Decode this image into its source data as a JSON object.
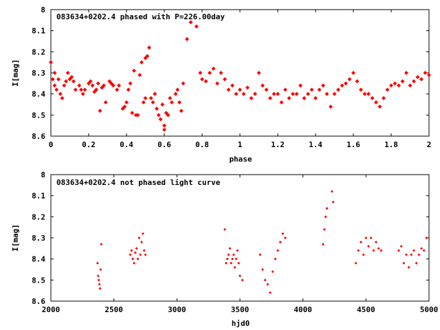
{
  "chart_data": [
    {
      "type": "scatter",
      "title": "083634+0202.4 phased with P=226.00day",
      "xlabel": "phase",
      "ylabel": "I[mag]",
      "xlim": [
        0,
        2
      ],
      "ylim": [
        8.6,
        8.0
      ],
      "y_inverted": true,
      "xticks": [
        "0",
        "0.2",
        "0.4",
        "0.6",
        "0.8",
        "1",
        "1.2",
        "1.4",
        "1.6",
        "1.8",
        "2"
      ],
      "yticks": [
        "8",
        "8.1",
        "8.2",
        "8.3",
        "8.4",
        "8.5",
        "8.6"
      ],
      "marker_color": "#ff0000",
      "grid": false,
      "series": [
        {
          "x": [
            0.0,
            0.01,
            0.02,
            0.02,
            0.03,
            0.04,
            0.05,
            0.06,
            0.07,
            0.08,
            0.09,
            0.1,
            0.11,
            0.12,
            0.13,
            0.15,
            0.16,
            0.17,
            0.18,
            0.2,
            0.21,
            0.22,
            0.23,
            0.24,
            0.25,
            0.26,
            0.27,
            0.28,
            0.29,
            0.31,
            0.32,
            0.33,
            0.35,
            0.36,
            0.38,
            0.39,
            0.4,
            0.41,
            0.42,
            0.43,
            0.44,
            0.45,
            0.46,
            0.47,
            0.48,
            0.49,
            0.5,
            0.5,
            0.51,
            0.52,
            0.53,
            0.54,
            0.55,
            0.56,
            0.57,
            0.58,
            0.59,
            0.6,
            0.6,
            0.61,
            0.62,
            0.63,
            0.64,
            0.66,
            0.67,
            0.68,
            0.69,
            0.7,
            0.72,
            0.74,
            0.77,
            0.79,
            0.8,
            0.82,
            0.84,
            0.86,
            0.88,
            0.9,
            0.92,
            0.94,
            0.96,
            0.98,
            1.0,
            1.02,
            1.04,
            1.06,
            1.08,
            1.1,
            1.12,
            1.14,
            1.16,
            1.18,
            1.2,
            1.22,
            1.24,
            1.26,
            1.28,
            1.3,
            1.32,
            1.34,
            1.36,
            1.38,
            1.4,
            1.42,
            1.44,
            1.46,
            1.48,
            1.5,
            1.52,
            1.54,
            1.56,
            1.58,
            1.6,
            1.62,
            1.64,
            1.66,
            1.68,
            1.7,
            1.72,
            1.74,
            1.76,
            1.78,
            1.8,
            1.82,
            1.84,
            1.86,
            1.88,
            1.9,
            1.92,
            1.94,
            1.96,
            1.98,
            2.0
          ],
          "y": [
            8.25,
            8.33,
            8.36,
            8.3,
            8.38,
            8.33,
            8.4,
            8.42,
            8.36,
            8.34,
            8.3,
            8.33,
            8.32,
            8.34,
            8.38,
            8.36,
            8.38,
            8.4,
            8.38,
            8.35,
            8.34,
            8.36,
            8.39,
            8.38,
            8.35,
            8.48,
            8.37,
            8.36,
            8.44,
            8.34,
            8.35,
            8.36,
            8.38,
            8.36,
            8.47,
            8.46,
            8.44,
            8.38,
            8.35,
            8.49,
            8.29,
            8.5,
            8.5,
            8.31,
            8.25,
            8.44,
            8.23,
            8.42,
            8.22,
            8.18,
            8.42,
            8.44,
            8.4,
            8.47,
            8.5,
            8.52,
            8.45,
            8.55,
            8.57,
            8.49,
            8.5,
            8.42,
            8.44,
            8.4,
            8.38,
            8.44,
            8.48,
            8.35,
            8.14,
            8.06,
            8.08,
            8.3,
            8.33,
            8.34,
            8.3,
            8.28,
            8.35,
            8.3,
            8.33,
            8.38,
            8.36,
            8.4,
            8.38,
            8.4,
            8.37,
            8.42,
            8.4,
            8.3,
            8.36,
            8.38,
            8.42,
            8.4,
            8.4,
            8.44,
            8.38,
            8.42,
            8.4,
            8.4,
            8.36,
            8.42,
            8.4,
            8.38,
            8.42,
            8.38,
            8.36,
            8.4,
            8.46,
            8.4,
            8.38,
            8.36,
            8.35,
            8.33,
            8.3,
            8.34,
            8.38,
            8.4,
            8.4,
            8.42,
            8.44,
            8.46,
            8.42,
            8.38,
            8.36,
            8.35,
            8.36,
            8.34,
            8.3,
            8.36,
            8.34,
            8.32,
            8.33,
            8.3,
            8.31
          ]
        }
      ]
    },
    {
      "type": "scatter",
      "title": "083634+0202.4 not phased light curve",
      "xlabel": "hjd0",
      "ylabel": "I[mag]",
      "xlim": [
        2000,
        5000
      ],
      "ylim": [
        8.6,
        8.0
      ],
      "y_inverted": true,
      "xticks": [
        "2000",
        "2500",
        "3000",
        "3500",
        "4000",
        "4500",
        "5000"
      ],
      "yticks": [
        "8",
        "8.1",
        "8.2",
        "8.3",
        "8.4",
        "8.5",
        "8.6"
      ],
      "marker_color": "#ff0000",
      "grid": false,
      "series": [
        {
          "x": [
            2370,
            2375,
            2380,
            2385,
            2390,
            2395,
            2400,
            2630,
            2640,
            2650,
            2660,
            2670,
            2680,
            2690,
            2700,
            2710,
            2720,
            2730,
            2740,
            2750,
            3380,
            3390,
            3400,
            3410,
            3420,
            3430,
            3440,
            3450,
            3460,
            3470,
            3480,
            3490,
            3500,
            3520,
            3660,
            3680,
            3700,
            3720,
            3740,
            3760,
            3780,
            3800,
            3820,
            3840,
            3860,
            4160,
            4170,
            4180,
            4190,
            4230,
            4240,
            4420,
            4440,
            4460,
            4480,
            4500,
            4520,
            4540,
            4560,
            4580,
            4600,
            4620,
            4760,
            4780,
            4800,
            4820,
            4840,
            4860,
            4880,
            4900,
            4920,
            4940,
            4960,
            4980
          ],
          "y": [
            8.42,
            8.48,
            8.5,
            8.52,
            8.54,
            8.45,
            8.33,
            8.38,
            8.36,
            8.4,
            8.42,
            8.37,
            8.35,
            8.4,
            8.3,
            8.38,
            8.32,
            8.28,
            8.36,
            8.38,
            8.26,
            8.42,
            8.4,
            8.38,
            8.35,
            8.42,
            8.4,
            8.38,
            8.44,
            8.4,
            8.36,
            8.42,
            8.48,
            8.5,
            8.38,
            8.45,
            8.5,
            8.52,
            8.56,
            8.46,
            8.4,
            8.36,
            8.32,
            8.28,
            8.3,
            8.33,
            8.26,
            8.2,
            8.16,
            8.08,
            8.13,
            8.42,
            8.36,
            8.32,
            8.38,
            8.3,
            8.34,
            8.3,
            8.36,
            8.32,
            8.35,
            8.36,
            8.36,
            8.34,
            8.42,
            8.38,
            8.44,
            8.38,
            8.36,
            8.42,
            8.38,
            8.35,
            8.36,
            8.3
          ]
        }
      ]
    }
  ]
}
